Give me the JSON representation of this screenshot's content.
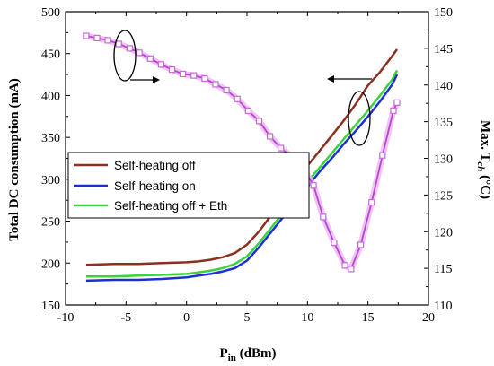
{
  "chart_data": {
    "type": "line",
    "xlabel_main": "P",
    "xlabel_sub": "in",
    "xlabel_unit": " (dBm)",
    "ylabel_left": "Total DC consumption (mA)",
    "ylabel_right_main": "Max. T",
    "ylabel_right_sub": "ch",
    "ylabel_right_unit": " (°C)",
    "xlim": [
      -10,
      20
    ],
    "ylim_left": [
      150,
      500
    ],
    "ylim_right": [
      110,
      150
    ],
    "x_ticks": [
      "-10",
      "-5",
      "0",
      "5",
      "10",
      "15",
      "20"
    ],
    "y_left_ticks": [
      "150",
      "200",
      "250",
      "300",
      "350",
      "400",
      "450",
      "500"
    ],
    "y_right_ticks": [
      "110",
      "115",
      "120",
      "125",
      "130",
      "135",
      "140",
      "145",
      "150"
    ],
    "grid": false,
    "legend_position": "center-left",
    "series": [
      {
        "name": "Self-heating off",
        "axis": "left",
        "color": "#8b2f1f",
        "x": [
          -8.3,
          -6,
          -4,
          -2,
          0,
          1,
          2,
          3,
          4,
          5,
          6,
          7,
          8,
          9,
          10,
          11,
          12,
          13,
          14,
          15,
          16,
          17,
          17.4
        ],
        "y": [
          198,
          199,
          199,
          200,
          201,
          202,
          204,
          207,
          212,
          222,
          238,
          257,
          276,
          296,
          316,
          334,
          352,
          370,
          390,
          412,
          428,
          447,
          455
        ]
      },
      {
        "name": "Self-heating on",
        "axis": "left",
        "color": "#1b2fd6",
        "x": [
          -8.3,
          -6,
          -4,
          -2,
          0,
          1,
          2,
          3,
          4,
          5,
          6,
          7,
          8,
          9,
          10,
          11,
          12,
          13,
          14,
          15,
          16,
          17,
          17.4
        ],
        "y": [
          179,
          180,
          180,
          181,
          183,
          185,
          187,
          190,
          194,
          203,
          219,
          237,
          255,
          273,
          291,
          309,
          325,
          342,
          358,
          375,
          393,
          413,
          425
        ]
      },
      {
        "name": "Self-heating off + Eth",
        "axis": "left",
        "color": "#3cd23c",
        "x": [
          -8.3,
          -6,
          -4,
          -2,
          0,
          1,
          2,
          3,
          4,
          5,
          6,
          7,
          8,
          9,
          10,
          11,
          12,
          13,
          14,
          15,
          16,
          17,
          17.4
        ],
        "y": [
          184,
          184,
          185,
          186,
          187,
          189,
          191,
          194,
          199,
          208,
          224,
          242,
          260,
          278,
          297,
          314,
          331,
          348,
          365,
          382,
          400,
          419,
          430
        ]
      },
      {
        "name": "Max. Tch",
        "axis": "right",
        "color": "#b146d9",
        "x": [
          -8.3,
          -7.4,
          -6.5,
          -5.6,
          -4.7,
          -3.9,
          -3.0,
          -2.1,
          -1.2,
          -0.3,
          0.6,
          1.5,
          2.4,
          3.3,
          4.2,
          5.1,
          6.0,
          6.9,
          7.8,
          8.7,
          9.6,
          10.5,
          11.3,
          12.2,
          13.1,
          13.6,
          14.4,
          15.3,
          16.2,
          17.1,
          17.4
        ],
        "y": [
          146.7,
          146.4,
          146.1,
          145.6,
          145.0,
          144.4,
          143.6,
          142.8,
          142.1,
          141.5,
          141.3,
          140.9,
          140.1,
          139.3,
          138.1,
          136.5,
          135.1,
          133.0,
          131.4,
          130.2,
          128.8,
          126.3,
          122.0,
          118.5,
          115.4,
          114.9,
          118.2,
          124.0,
          130.4,
          136.5,
          137.6
        ]
      }
    ]
  }
}
